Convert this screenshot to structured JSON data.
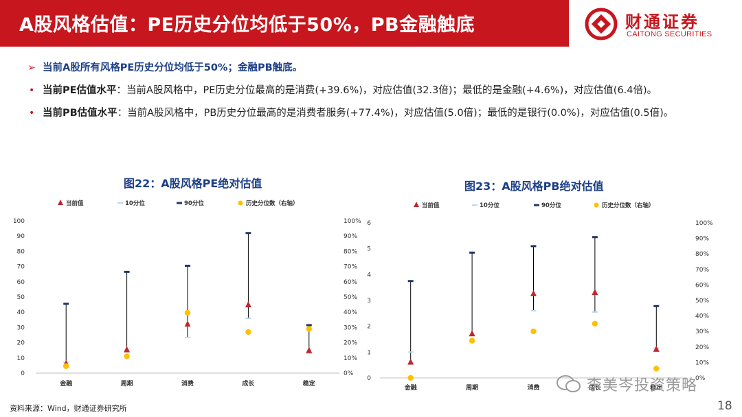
{
  "header": {
    "title": "A股风格估值：PE历史分位均低于50%，PB金融触底",
    "logo_cn": "财通证券",
    "logo_en": "CAITONG SECURITIES"
  },
  "bullets": {
    "main": "当前A股所有风格PE历史分位均低于50%；金融PB触底。",
    "pe_label": "当前PE估值水平",
    "pe_text": "：当前A股风格中，PE历史分位最高的是消费(+39.6%)，对应估值(32.3倍)；最低的是金融(+4.6%)，对应估值(6.4倍)。",
    "pb_label": "当前PB估值水平",
    "pb_text": "：当前A股风格中，PB历史分位最高的是消费者服务(+77.4%)，对应估值(5.0倍)；最低的是银行(0.0%)，对应估值(0.5倍)。"
  },
  "legend": {
    "current": "当前值",
    "p10": "10分位",
    "p90": "90分位",
    "pct": "历史分位数（右轴）"
  },
  "colors": {
    "brand_red": "#c8161e",
    "title_blue": "#1d3f87",
    "current_marker": "#c0272d",
    "p10_marker": "#bdd7ee",
    "p90_marker": "#1f3864",
    "pct_marker": "#ffc000"
  },
  "chart_data": [
    {
      "type": "scatter",
      "title": "图22：A股风格PE绝对估值",
      "categories": [
        "金融",
        "周期",
        "消费",
        "成长",
        "稳定"
      ],
      "ylim": [
        0,
        100
      ],
      "yticks": [
        "0",
        "10",
        "20",
        "30",
        "40",
        "50",
        "60",
        "70",
        "80",
        "90",
        "100"
      ],
      "y2lim": [
        0,
        1
      ],
      "y2ticks": [
        "0%",
        "10%",
        "20%",
        "30%",
        "40%",
        "50%",
        "60%",
        "70%",
        "80%",
        "90%",
        "100%"
      ],
      "series": [
        {
          "name": "当前值",
          "values": [
            6.4,
            15.5,
            32.3,
            45,
            15
          ]
        },
        {
          "name": "10分位",
          "values": [
            7,
            14,
            23.5,
            36,
            13
          ]
        },
        {
          "name": "90分位",
          "values": [
            45.5,
            66.5,
            70.5,
            92,
            31.5
          ]
        },
        {
          "name": "历史分位数（右轴）",
          "axis": "right",
          "values": [
            0.046,
            0.11,
            0.396,
            0.27,
            0.29
          ]
        }
      ]
    },
    {
      "type": "scatter",
      "title": "图23：A股风格PB绝对估值",
      "categories": [
        "金融",
        "周期",
        "消费",
        "成长",
        "稳定"
      ],
      "ylim": [
        0,
        6
      ],
      "yticks": [
        "0",
        "1",
        "2",
        "3",
        "4",
        "5",
        "6"
      ],
      "y2lim": [
        0,
        1
      ],
      "y2ticks": [
        "0%",
        "10%",
        "20%",
        "30%",
        "40%",
        "50%",
        "60%",
        "70%",
        "80%",
        "90%",
        "100%"
      ],
      "series": [
        {
          "name": "当前值",
          "values": [
            0.62,
            1.72,
            3.27,
            3.32,
            1.12
          ]
        },
        {
          "name": "10分位",
          "values": [
            1.0,
            1.65,
            2.6,
            2.55,
            1.15
          ]
        },
        {
          "name": "90分位",
          "values": [
            3.75,
            4.85,
            5.1,
            5.45,
            2.78
          ]
        },
        {
          "name": "历史分位数（右轴）",
          "axis": "right",
          "values": [
            0.0,
            0.24,
            0.3,
            0.35,
            0.06
          ]
        }
      ]
    }
  ],
  "footer": {
    "source": "资料来源：Wind，财通证券研究所",
    "page": "18",
    "watermark": "李美岑投资策略"
  }
}
